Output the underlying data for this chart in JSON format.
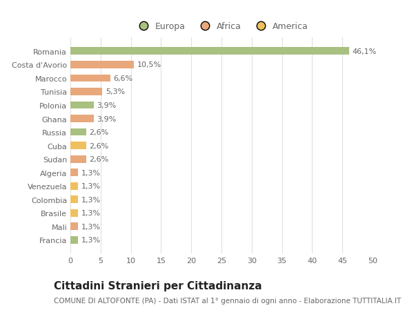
{
  "countries": [
    "Francia",
    "Mali",
    "Brasile",
    "Colombia",
    "Venezuela",
    "Algeria",
    "Sudan",
    "Cuba",
    "Russia",
    "Ghana",
    "Polonia",
    "Tunisia",
    "Marocco",
    "Costa d'Avorio",
    "Romania"
  ],
  "values": [
    1.3,
    1.3,
    1.3,
    1.3,
    1.3,
    1.3,
    2.6,
    2.6,
    2.6,
    3.9,
    3.9,
    5.3,
    6.6,
    10.5,
    46.1
  ],
  "labels": [
    "1,3%",
    "1,3%",
    "1,3%",
    "1,3%",
    "1,3%",
    "1,3%",
    "2,6%",
    "2,6%",
    "2,6%",
    "3,9%",
    "3,9%",
    "5,3%",
    "6,6%",
    "10,5%",
    "46,1%"
  ],
  "categories": [
    "Europa",
    "Africa",
    "America"
  ],
  "colors": {
    "Europa": "#a8c080",
    "Africa": "#e8a87c",
    "America": "#f0c060"
  },
  "bar_colors": [
    "#a8c080",
    "#e8a87c",
    "#f0c060",
    "#f0c060",
    "#f0c060",
    "#e8a87c",
    "#e8a87c",
    "#f0c060",
    "#a8c080",
    "#e8a87c",
    "#a8c080",
    "#e8a87c",
    "#e8a87c",
    "#e8a87c",
    "#a8c080"
  ],
  "title": "Cittadini Stranieri per Cittadinanza",
  "subtitle": "COMUNE DI ALTOFONTE (PA) - Dati ISTAT al 1° gennaio di ogni anno - Elaborazione TUTTITALIA.IT",
  "xlim": [
    0,
    50
  ],
  "xticks": [
    0,
    5,
    10,
    15,
    20,
    25,
    30,
    35,
    40,
    45,
    50
  ],
  "background_color": "#ffffff",
  "grid_color": "#e0e0e0",
  "bar_height": 0.55,
  "label_fontsize": 8,
  "title_fontsize": 11,
  "subtitle_fontsize": 7.5,
  "tick_fontsize": 8,
  "legend_fontsize": 9,
  "text_color": "#666666"
}
